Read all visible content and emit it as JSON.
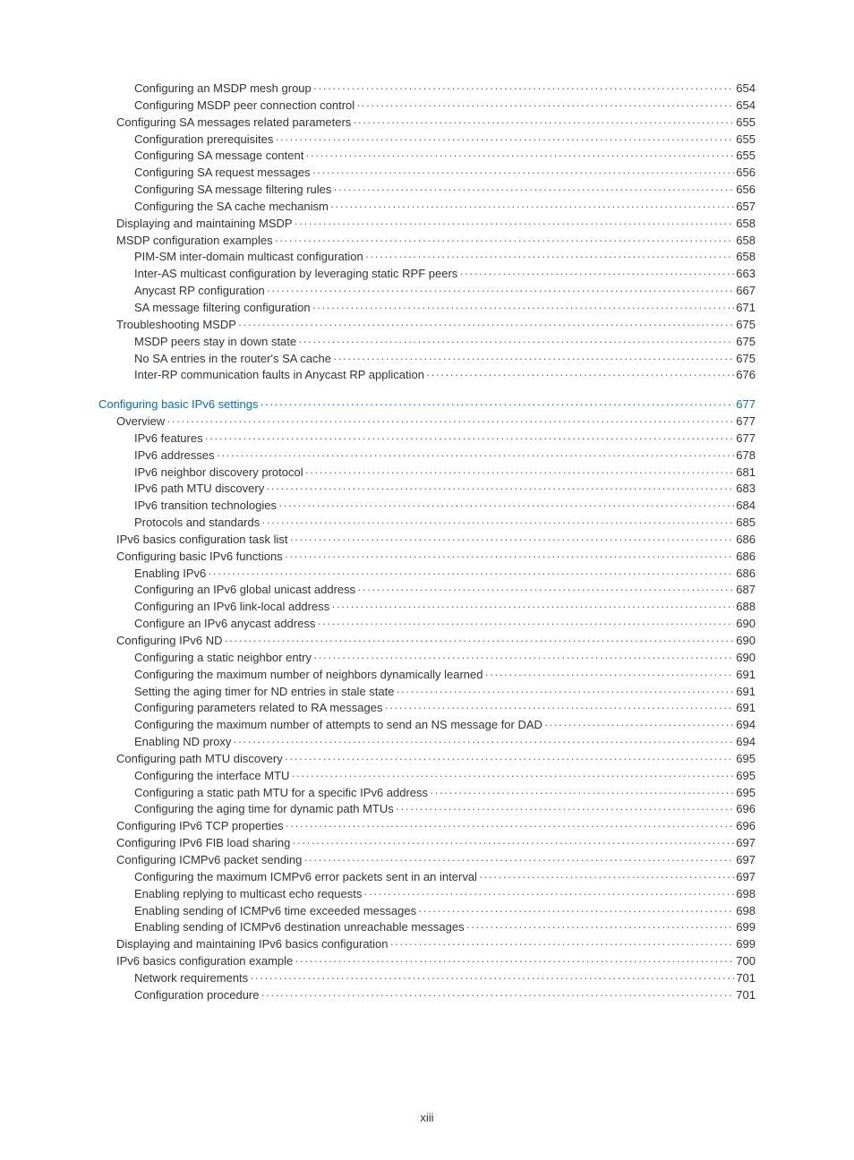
{
  "pageNumber": "xiii",
  "colors": {
    "text": "#333333",
    "link": "#0070c0",
    "background": "#ffffff"
  },
  "typography": {
    "font_family": "Arial, Helvetica, sans-serif",
    "font_size_pt": 10,
    "line_height": 1.45
  },
  "entries": [
    {
      "label": "Configuring an MSDP mesh group",
      "page": "654",
      "indent": 2
    },
    {
      "label": "Configuring MSDP peer connection control",
      "page": "654",
      "indent": 2
    },
    {
      "label": "Configuring SA messages related parameters",
      "page": "655",
      "indent": 1
    },
    {
      "label": "Configuration prerequisites",
      "page": "655",
      "indent": 2
    },
    {
      "label": "Configuring SA message content",
      "page": "655",
      "indent": 2
    },
    {
      "label": "Configuring SA request messages",
      "page": "656",
      "indent": 2
    },
    {
      "label": "Configuring SA message filtering rules",
      "page": "656",
      "indent": 2
    },
    {
      "label": "Configuring the SA cache mechanism",
      "page": "657",
      "indent": 2
    },
    {
      "label": "Displaying and maintaining MSDP",
      "page": "658",
      "indent": 1
    },
    {
      "label": "MSDP configuration examples",
      "page": "658",
      "indent": 1
    },
    {
      "label": "PIM-SM inter-domain multicast configuration",
      "page": "658",
      "indent": 2
    },
    {
      "label": "Inter-AS multicast configuration by leveraging static RPF peers",
      "page": "663",
      "indent": 2
    },
    {
      "label": "Anycast RP configuration",
      "page": "667",
      "indent": 2
    },
    {
      "label": "SA message filtering configuration",
      "page": "671",
      "indent": 2
    },
    {
      "label": "Troubleshooting MSDP",
      "page": "675",
      "indent": 1
    },
    {
      "label": "MSDP peers stay in down state",
      "page": "675",
      "indent": 2
    },
    {
      "label": "No SA entries in the router's SA cache",
      "page": "675",
      "indent": 2
    },
    {
      "label": "Inter-RP communication faults in Anycast RP application",
      "page": "676",
      "indent": 2
    },
    {
      "gap": true
    },
    {
      "label": "Configuring basic IPv6 settings",
      "page": "677",
      "indent": 0,
      "link": true
    },
    {
      "label": "Overview",
      "page": "677",
      "indent": 1
    },
    {
      "label": "IPv6 features",
      "page": "677",
      "indent": 2
    },
    {
      "label": "IPv6 addresses",
      "page": "678",
      "indent": 2
    },
    {
      "label": "IPv6 neighbor discovery protocol",
      "page": "681",
      "indent": 2
    },
    {
      "label": "IPv6 path MTU discovery",
      "page": "683",
      "indent": 2
    },
    {
      "label": "IPv6 transition technologies",
      "page": "684",
      "indent": 2
    },
    {
      "label": "Protocols and standards",
      "page": "685",
      "indent": 2
    },
    {
      "label": "IPv6 basics configuration task list",
      "page": "686",
      "indent": 1
    },
    {
      "label": "Configuring basic IPv6 functions",
      "page": "686",
      "indent": 1
    },
    {
      "label": "Enabling IPv6",
      "page": "686",
      "indent": 2
    },
    {
      "label": "Configuring an IPv6 global unicast address",
      "page": "687",
      "indent": 2
    },
    {
      "label": "Configuring an IPv6 link-local address",
      "page": "688",
      "indent": 2
    },
    {
      "label": "Configure an IPv6 anycast address",
      "page": "690",
      "indent": 2
    },
    {
      "label": "Configuring IPv6 ND",
      "page": "690",
      "indent": 1
    },
    {
      "label": "Configuring a static neighbor entry",
      "page": "690",
      "indent": 2
    },
    {
      "label": "Configuring the maximum number of neighbors dynamically learned",
      "page": "691",
      "indent": 2
    },
    {
      "label": "Setting the aging timer for ND entries in stale state",
      "page": "691",
      "indent": 2
    },
    {
      "label": "Configuring parameters related to RA messages",
      "page": "691",
      "indent": 2
    },
    {
      "label": "Configuring the maximum number of attempts to send an NS message for DAD",
      "page": "694",
      "indent": 2
    },
    {
      "label": "Enabling ND proxy",
      "page": "694",
      "indent": 2
    },
    {
      "label": "Configuring path MTU discovery",
      "page": "695",
      "indent": 1
    },
    {
      "label": "Configuring the interface MTU",
      "page": "695",
      "indent": 2
    },
    {
      "label": "Configuring a static path MTU for a specific IPv6 address",
      "page": "695",
      "indent": 2
    },
    {
      "label": "Configuring the aging time for dynamic path MTUs",
      "page": "696",
      "indent": 2
    },
    {
      "label": "Configuring IPv6 TCP properties",
      "page": "696",
      "indent": 1
    },
    {
      "label": "Configuring IPv6 FIB load sharing",
      "page": "697",
      "indent": 1
    },
    {
      "label": "Configuring ICMPv6 packet sending",
      "page": "697",
      "indent": 1
    },
    {
      "label": "Configuring the maximum ICMPv6 error packets sent in an interval",
      "page": "697",
      "indent": 2
    },
    {
      "label": "Enabling replying to multicast echo requests",
      "page": "698",
      "indent": 2
    },
    {
      "label": "Enabling sending of ICMPv6 time exceeded messages",
      "page": "698",
      "indent": 2
    },
    {
      "label": "Enabling sending of ICMPv6 destination unreachable messages",
      "page": "699",
      "indent": 2
    },
    {
      "label": "Displaying and maintaining IPv6 basics configuration",
      "page": "699",
      "indent": 1
    },
    {
      "label": "IPv6 basics configuration example",
      "page": "700",
      "indent": 1
    },
    {
      "label": "Network requirements",
      "page": "701",
      "indent": 2
    },
    {
      "label": "Configuration procedure",
      "page": "701",
      "indent": 2
    }
  ]
}
